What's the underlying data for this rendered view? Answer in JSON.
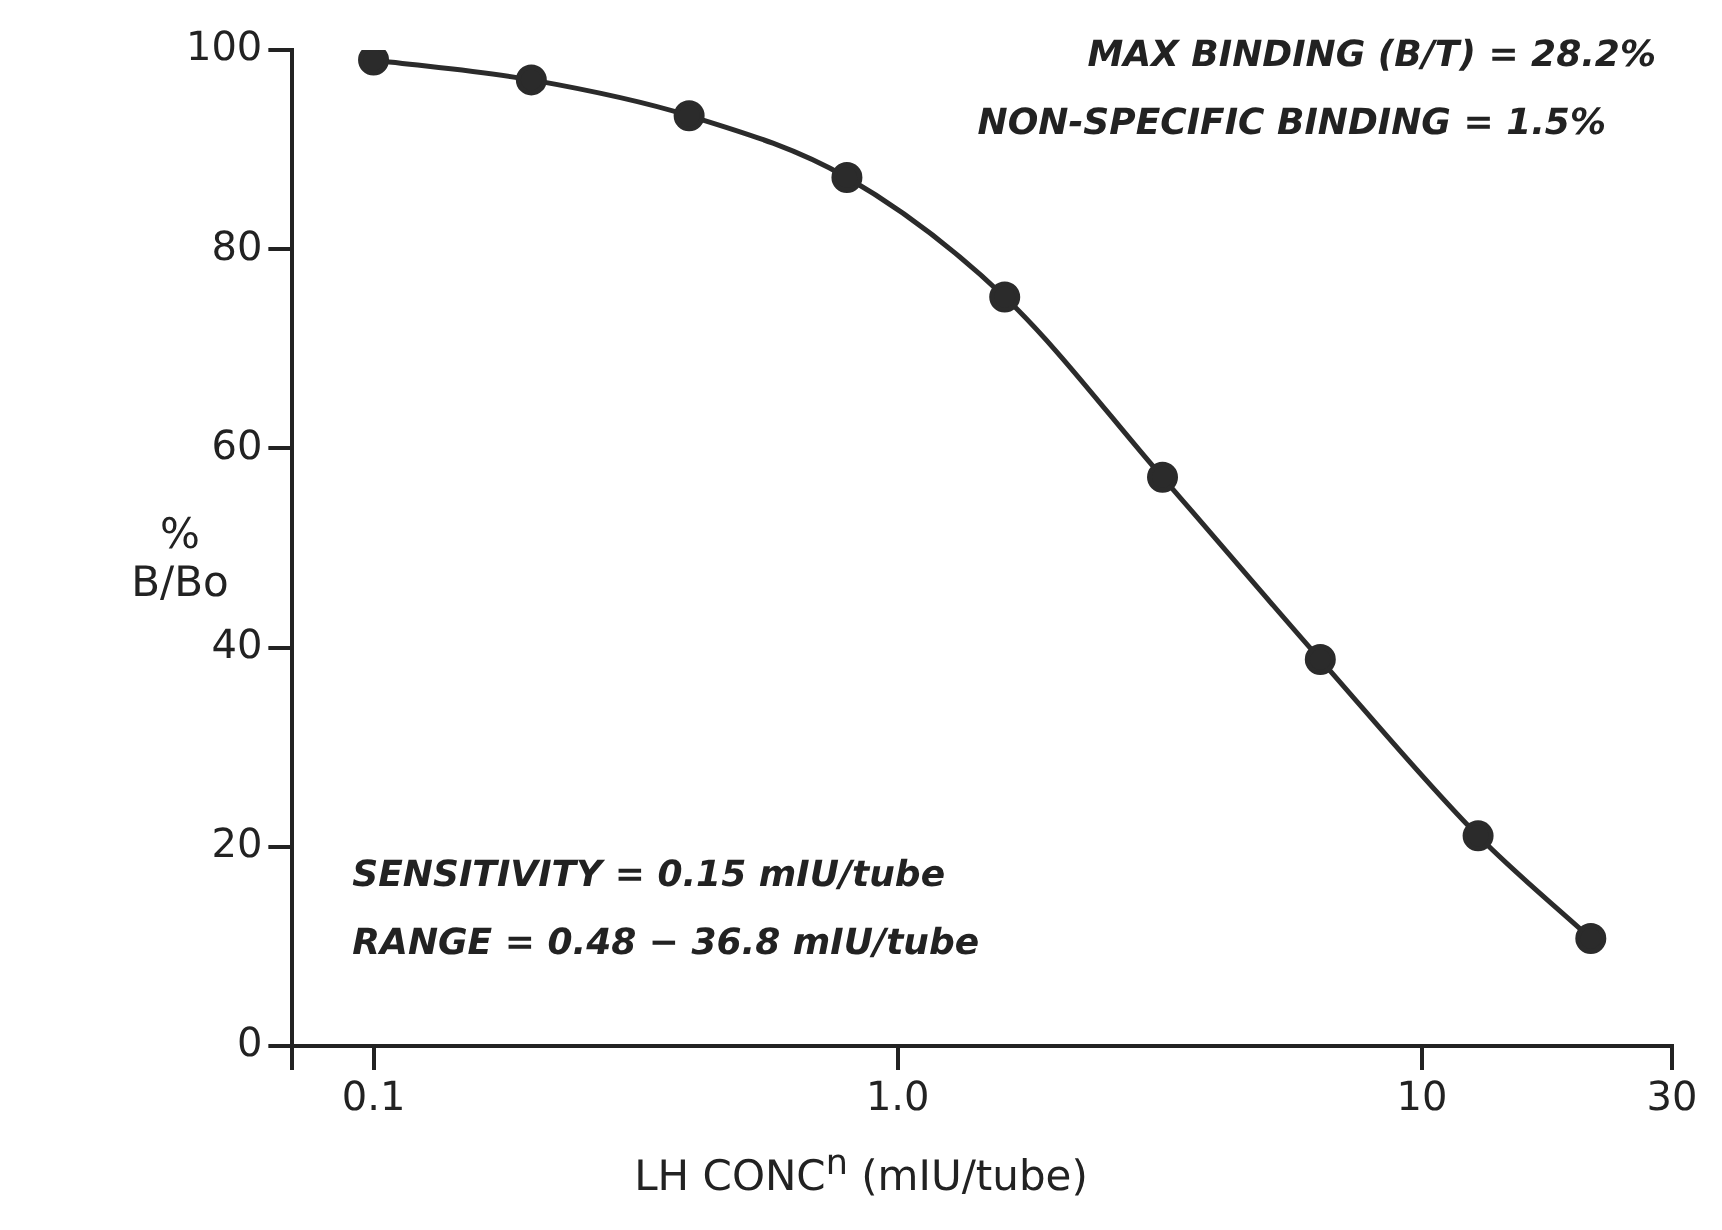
{
  "chart_data": {
    "type": "line",
    "xlabel": "LH CONC$^{n}$ (mIU/tube)",
    "ylabel": "% B/Bo",
    "x": [
      0.1,
      0.2,
      0.4,
      0.8,
      1.6,
      3.2,
      6.4,
      12.8,
      21
    ],
    "series": [
      {
        "color": "#2b2b2b",
        "values": [
          99,
          97,
          93.4,
          87.2,
          75.2,
          57.1,
          38.8,
          21.1,
          10.8
        ]
      }
    ],
    "log": "x",
    "xlim": [
      0.07,
      30
    ],
    "xticks": [
      {
        "value": 0.07,
        "label": null
      },
      0.1,
      {
        "value": 1,
        "label": "1.0"
      },
      10,
      30
    ],
    "ylim": [
      0,
      100
    ],
    "yticks": [
      0,
      20,
      40,
      60,
      80,
      100
    ],
    "grid": false,
    "legend": false,
    "marker": "circle",
    "line_style": "solid",
    "annotations": [
      "MAX BINDING (B/T) = 28.2%",
      "NON-SPECIFIC BINDING = 1.5%",
      "SENSITIVITY = 0.15 mIU/tube",
      "RANGE = 0.48 − 36.8 mIU/tube"
    ]
  }
}
